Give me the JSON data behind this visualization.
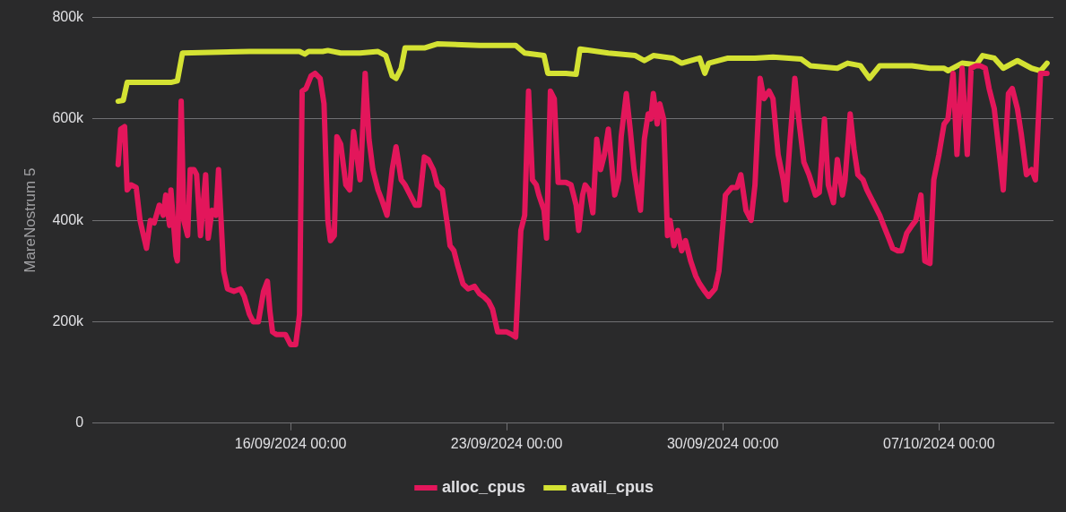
{
  "chart_data": {
    "type": "line",
    "ylabel": "MareNostrum 5",
    "legend": "bottom",
    "grid": "y",
    "marker": "none",
    "line_style": "solid",
    "xlim": [
      "2024-09-09T14:00",
      "2024-10-10T17:00"
    ],
    "xticks": [
      {
        "value": "2024-09-16T00:00",
        "label": "16/09/2024 00:00"
      },
      {
        "value": "2024-09-23T00:00",
        "label": "23/09/2024 00:00"
      },
      {
        "value": "2024-09-30T00:00",
        "label": "30/09/2024 00:00"
      },
      {
        "value": "2024-10-07T00:00",
        "label": "07/10/2024 00:00"
      }
    ],
    "ylim": [
      0,
      800000
    ],
    "yticks": [
      0,
      {
        "value": 200000,
        "label": "200k"
      },
      {
        "value": 400000,
        "label": "400k"
      },
      {
        "value": 600000,
        "label": "600k"
      },
      {
        "value": 800000,
        "label": "800k"
      }
    ],
    "series": [
      {
        "name": "alloc_cpus",
        "color": "#e3165b",
        "x": [
          "2024-09-10T10:00",
          "2024-09-10T12:00",
          "2024-09-10T15:00",
          "2024-09-10T17:00",
          "2024-09-10T20:00",
          "2024-09-11T00:00",
          "2024-09-11T03:00",
          "2024-09-11T08:00",
          "2024-09-11T11:00",
          "2024-09-11T14:00",
          "2024-09-11T18:00",
          "2024-09-11T21:00",
          "2024-09-11T23:00",
          "2024-09-12T02:00",
          "2024-09-12T03:00",
          "2024-09-12T07:00",
          "2024-09-12T08:00",
          "2024-09-12T11:00",
          "2024-09-12T13:00",
          "2024-09-12T16:00",
          "2024-09-12T18:00",
          "2024-09-12T21:00",
          "2024-09-12T23:00",
          "2024-09-13T02:00",
          "2024-09-13T06:00",
          "2024-09-13T08:00",
          "2024-09-13T11:00",
          "2024-09-13T14:00",
          "2024-09-13T16:00",
          "2024-09-13T20:00",
          "2024-09-13T23:00",
          "2024-09-14T04:00",
          "2024-09-14T09:00",
          "2024-09-14T12:00",
          "2024-09-14T16:00",
          "2024-09-14T19:00",
          "2024-09-14T23:00",
          "2024-09-15T03:00",
          "2024-09-15T06:00",
          "2024-09-15T08:00",
          "2024-09-15T10:00",
          "2024-09-15T13:00",
          "2024-09-15T20:00",
          "2024-09-16T00:00",
          "2024-09-16T04:00",
          "2024-09-16T07:00",
          "2024-09-16T09:00",
          "2024-09-16T12:00",
          "2024-09-16T16:00",
          "2024-09-16T19:00",
          "2024-09-16T23:00",
          "2024-09-17T02:00",
          "2024-09-17T05:00",
          "2024-09-17T07:00",
          "2024-09-17T10:00",
          "2024-09-17T12:00",
          "2024-09-17T15:00",
          "2024-09-17T19:00",
          "2024-09-17T22:00",
          "2024-09-18T01:00",
          "2024-09-18T06:00",
          "2024-09-18T07:00",
          "2024-09-18T10:00",
          "2024-09-18T13:00",
          "2024-09-18T16:00",
          "2024-09-18T20:00",
          "2024-09-18T23:00",
          "2024-09-19T03:00",
          "2024-09-19T07:00",
          "2024-09-19T10:00",
          "2024-09-19T14:00",
          "2024-09-19T17:00",
          "2024-09-19T21:00",
          "2024-09-20T01:00",
          "2024-09-20T04:00",
          "2024-09-20T08:00",
          "2024-09-20T11:00",
          "2024-09-20T15:00",
          "2024-09-20T18:00",
          "2024-09-20T22:00",
          "2024-09-21T02:00",
          "2024-09-21T04:00",
          "2024-09-21T07:00",
          "2024-09-21T10:00",
          "2024-09-21T14:00",
          "2024-09-21T18:00",
          "2024-09-21T23:00",
          "2024-09-22T03:00",
          "2024-09-22T06:00",
          "2024-09-22T10:00",
          "2024-09-22T13:00",
          "2024-09-22T17:00",
          "2024-09-22T20:00",
          "2024-09-23T00:00",
          "2024-09-23T04:00",
          "2024-09-23T07:00",
          "2024-09-23T11:00",
          "2024-09-23T14:00",
          "2024-09-23T17:00",
          "2024-09-23T20:00",
          "2024-09-23T23:00",
          "2024-09-24T01:00",
          "2024-09-24T05:00",
          "2024-09-24T07:00",
          "2024-09-24T10:00",
          "2024-09-24T13:00",
          "2024-09-24T16:00",
          "2024-09-24T22:00",
          "2024-09-25T02:00",
          "2024-09-25T06:00",
          "2024-09-25T08:00",
          "2024-09-25T11:00",
          "2024-09-25T13:00",
          "2024-09-25T16:00",
          "2024-09-25T19:00",
          "2024-09-25T22:00",
          "2024-09-26T01:00",
          "2024-09-26T04:00",
          "2024-09-26T07:00",
          "2024-09-26T10:00",
          "2024-09-26T12:00",
          "2024-09-26T15:00",
          "2024-09-26T17:00",
          "2024-09-26T21:00",
          "2024-09-27T00:00",
          "2024-09-27T03:00",
          "2024-09-27T06:00",
          "2024-09-27T08:00",
          "2024-09-27T11:00",
          "2024-09-27T14:00",
          "2024-09-27T16:00",
          "2024-09-27T18:00",
          "2024-09-27T21:00",
          "2024-09-27T23:00",
          "2024-09-28T02:00",
          "2024-09-28T05:00",
          "2024-09-28T07:00",
          "2024-09-28T10:00",
          "2024-09-28T13:00",
          "2024-09-28T16:00",
          "2024-09-28T19:00",
          "2024-09-28T23:00",
          "2024-09-29T03:00",
          "2024-09-29T06:00",
          "2024-09-29T10:00",
          "2024-09-29T13:00",
          "2024-09-29T18:00",
          "2024-09-29T21:00",
          "2024-09-30T02:00",
          "2024-09-30T07:00",
          "2024-09-30T11:00",
          "2024-09-30T14:00",
          "2024-09-30T18:00",
          "2024-09-30T22:00",
          "2024-10-01T01:00",
          "2024-10-01T05:00",
          "2024-10-01T08:00",
          "2024-10-01T12:00",
          "2024-10-01T15:00",
          "2024-10-01T19:00",
          "2024-10-01T23:00",
          "2024-10-02T01:00",
          "2024-10-02T04:00",
          "2024-10-02T08:00",
          "2024-10-02T11:00",
          "2024-10-02T15:00",
          "2024-10-02T19:00",
          "2024-10-03T00:00",
          "2024-10-03T03:00",
          "2024-10-03T07:00",
          "2024-10-03T10:00",
          "2024-10-03T14:00",
          "2024-10-03T17:00",
          "2024-10-03T21:00",
          "2024-10-03T23:00",
          "2024-10-04T03:00",
          "2024-10-04T06:00",
          "2024-10-04T09:00",
          "2024-10-04T13:00",
          "2024-10-04T16:00",
          "2024-10-04T18:00",
          "2024-10-04T22:00",
          "2024-10-05T02:00",
          "2024-10-05T05:00",
          "2024-10-05T09:00",
          "2024-10-05T12:00",
          "2024-10-05T16:00",
          "2024-10-05T19:00",
          "2024-10-05T23:00",
          "2024-10-06T03:00",
          "2024-10-06T06:00",
          "2024-10-06T10:00",
          "2024-10-06T13:00",
          "2024-10-06T17:00",
          "2024-10-06T20:00",
          "2024-10-07T00:00",
          "2024-10-07T04:00",
          "2024-10-07T07:00",
          "2024-10-07T11:00",
          "2024-10-07T14:00",
          "2024-10-07T18:00",
          "2024-10-07T22:00",
          "2024-10-08T01:00",
          "2024-10-08T05:00",
          "2024-10-08T08:00",
          "2024-10-08T12:00",
          "2024-10-08T15:00",
          "2024-10-08T19:00",
          "2024-10-08T23:00",
          "2024-10-09T02:00",
          "2024-10-09T06:00",
          "2024-10-09T09:00",
          "2024-10-09T13:00",
          "2024-10-09T16:00",
          "2024-10-09T20:00",
          "2024-10-10T00:00",
          "2024-10-10T03:00",
          "2024-10-10T07:00",
          "2024-10-10T12:00"
        ],
        "values": [
          510000,
          580000,
          585000,
          460000,
          470000,
          465000,
          400000,
          345000,
          400000,
          395000,
          430000,
          410000,
          450000,
          390000,
          460000,
          330000,
          320000,
          635000,
          400000,
          370000,
          500000,
          500000,
          490000,
          370000,
          490000,
          365000,
          420000,
          410000,
          500000,
          300000,
          265000,
          260000,
          265000,
          250000,
          215000,
          200000,
          200000,
          260000,
          280000,
          220000,
          180000,
          175000,
          175000,
          155000,
          155000,
          215000,
          655000,
          660000,
          685000,
          690000,
          680000,
          630000,
          400000,
          360000,
          370000,
          565000,
          550000,
          470000,
          460000,
          575000,
          480000,
          520000,
          690000,
          560000,
          500000,
          460000,
          440000,
          410000,
          500000,
          545000,
          480000,
          470000,
          450000,
          430000,
          430000,
          525000,
          520000,
          500000,
          470000,
          460000,
          390000,
          350000,
          340000,
          310000,
          275000,
          265000,
          270000,
          255000,
          250000,
          240000,
          225000,
          180000,
          180000,
          180000,
          175000,
          170000,
          380000,
          410000,
          655000,
          480000,
          470000,
          450000,
          420000,
          365000,
          655000,
          640000,
          475000,
          475000,
          470000,
          430000,
          380000,
          450000,
          470000,
          460000,
          415000,
          560000,
          500000,
          530000,
          580000,
          500000,
          450000,
          480000,
          565000,
          650000,
          580000,
          500000,
          450000,
          420000,
          560000,
          610000,
          600000,
          650000,
          590000,
          630000,
          600000,
          370000,
          400000,
          350000,
          380000,
          340000,
          360000,
          320000,
          290000,
          275000,
          260000,
          250000,
          265000,
          300000,
          450000,
          465000,
          465000,
          490000,
          420000,
          400000,
          470000,
          680000,
          640000,
          655000,
          640000,
          530000,
          480000,
          440000,
          550000,
          680000,
          600000,
          515000,
          490000,
          450000,
          455000,
          600000,
          470000,
          435000,
          520000,
          450000,
          480000,
          610000,
          540000,
          490000,
          480000,
          460000,
          450000,
          430000,
          410000,
          390000,
          365000,
          345000,
          340000,
          340000,
          375000,
          390000,
          400000,
          450000,
          320000,
          315000,
          480000,
          530000,
          590000,
          600000,
          690000,
          530000,
          700000,
          530000,
          700000,
          705000,
          705000,
          700000,
          660000,
          620000,
          530000,
          460000,
          650000,
          660000,
          620000,
          570000,
          490000,
          500000,
          480000,
          690000,
          690000
        ]
      },
      {
        "name": "avail_cpus",
        "color": "#d4e233",
        "x": [
          "2024-09-10T10:00",
          "2024-09-10T14:00",
          "2024-09-10T17:00",
          "2024-09-12T03:00",
          "2024-09-12T08:00",
          "2024-09-12T12:00",
          "2024-09-14T16:00",
          "2024-09-16T07:00",
          "2024-09-16T11:00",
          "2024-09-16T14:00",
          "2024-09-17T01:00",
          "2024-09-17T05:00",
          "2024-09-17T15:00",
          "2024-09-18T06:00",
          "2024-09-18T20:00",
          "2024-09-19T02:00",
          "2024-09-19T07:00",
          "2024-09-19T10:00",
          "2024-09-19T14:00",
          "2024-09-19T17:00",
          "2024-09-20T08:00",
          "2024-09-20T18:00",
          "2024-09-22T03:00",
          "2024-09-23T07:00",
          "2024-09-23T14:00",
          "2024-09-24T05:00",
          "2024-09-24T08:00",
          "2024-09-24T22:00",
          "2024-09-25T06:00",
          "2024-09-25T09:00",
          "2024-09-26T07:00",
          "2024-09-27T04:00",
          "2024-09-27T11:00",
          "2024-09-27T18:00",
          "2024-09-28T09:00",
          "2024-09-28T16:00",
          "2024-09-29T06:00",
          "2024-09-29T10:00",
          "2024-09-29T13:00",
          "2024-09-30T04:00",
          "2024-10-01T01:00",
          "2024-10-01T15:00",
          "2024-10-02T13:00",
          "2024-10-02T20:00",
          "2024-10-03T17:00",
          "2024-10-04T01:00",
          "2024-10-04T11:00",
          "2024-10-04T18:00",
          "2024-10-05T02:00",
          "2024-10-05T12:00",
          "2024-10-06T03:00",
          "2024-10-06T17:00",
          "2024-10-07T04:00",
          "2024-10-07T07:00",
          "2024-10-07T18:00",
          "2024-10-08T05:00",
          "2024-10-08T10:00",
          "2024-10-08T19:00",
          "2024-10-09T02:00",
          "2024-10-09T13:00",
          "2024-10-10T00:00",
          "2024-10-10T07:00",
          "2024-10-10T12:00"
        ],
        "values": [
          635000,
          637000,
          672000,
          672000,
          675000,
          730000,
          733000,
          733000,
          728000,
          733000,
          733000,
          735000,
          730000,
          730000,
          733000,
          725000,
          685000,
          680000,
          700000,
          740000,
          740000,
          748000,
          745000,
          745000,
          730000,
          725000,
          690000,
          690000,
          688000,
          738000,
          730000,
          725000,
          715000,
          725000,
          720000,
          710000,
          720000,
          690000,
          710000,
          720000,
          720000,
          722000,
          718000,
          705000,
          700000,
          710000,
          705000,
          680000,
          705000,
          705000,
          705000,
          700000,
          700000,
          695000,
          710000,
          707000,
          725000,
          720000,
          700000,
          715000,
          700000,
          695000,
          710000
        ]
      }
    ]
  }
}
